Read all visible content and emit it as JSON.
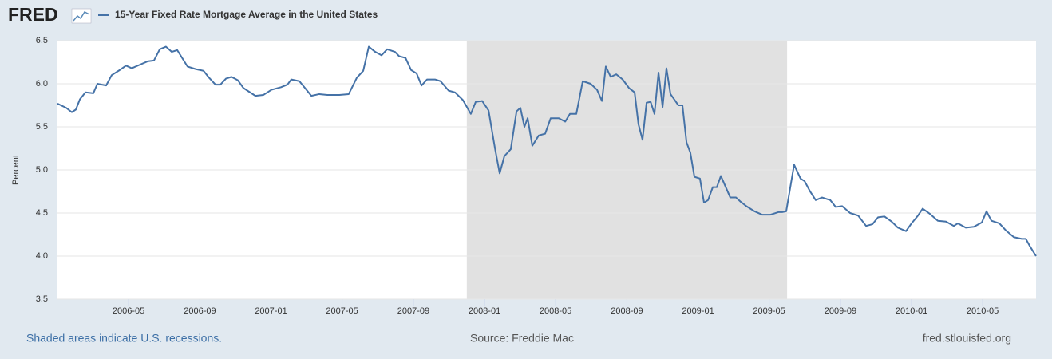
{
  "logo": "FRED",
  "chart_data": {
    "type": "line",
    "y_label": "Percent",
    "note": "Shaded areas indicate U.S. recessions.",
    "source": "Source: Freddie Mac",
    "site": "fred.stlouisfed.org",
    "grid": true,
    "recessions": [
      {
        "start": 2007.917,
        "end": 2009.417
      }
    ],
    "xlim": [
      2006.0,
      2010.583
    ],
    "xticks": [
      {
        "value": 2006.333,
        "label": "2006-05"
      },
      {
        "value": 2006.667,
        "label": "2006-09"
      },
      {
        "value": 2007.0,
        "label": "2007-01"
      },
      {
        "value": 2007.333,
        "label": "2007-05"
      },
      {
        "value": 2007.667,
        "label": "2007-09"
      },
      {
        "value": 2008.0,
        "label": "2008-01"
      },
      {
        "value": 2008.333,
        "label": "2008-05"
      },
      {
        "value": 2008.667,
        "label": "2008-09"
      },
      {
        "value": 2009.0,
        "label": "2009-01"
      },
      {
        "value": 2009.333,
        "label": "2009-05"
      },
      {
        "value": 2009.667,
        "label": "2009-09"
      },
      {
        "value": 2010.0,
        "label": "2010-01"
      },
      {
        "value": 2010.333,
        "label": "2010-05"
      }
    ],
    "ylim": [
      3.5,
      6.5
    ],
    "yticks": [
      3.5,
      {
        "value": 4,
        "label": "4.0"
      },
      4.5,
      {
        "value": 5,
        "label": "5.0"
      },
      5.5,
      {
        "value": 6,
        "label": "6.0"
      },
      6.5
    ],
    "x": [
      2006.0,
      2006.041,
      2006.067,
      2006.086,
      2006.105,
      2006.131,
      2006.168,
      2006.187,
      2006.228,
      2006.254,
      2006.292,
      2006.321,
      2006.348,
      2006.385,
      2006.422,
      2006.452,
      2006.479,
      2006.508,
      2006.535,
      2006.561,
      2006.609,
      2006.647,
      2006.684,
      2006.71,
      2006.74,
      2006.763,
      2006.789,
      2006.815,
      2006.845,
      2006.871,
      2006.927,
      2006.964,
      2007.002,
      2007.047,
      2007.077,
      2007.095,
      2007.133,
      2007.189,
      2007.226,
      2007.264,
      2007.32,
      2007.364,
      2007.402,
      2007.432,
      2007.458,
      2007.488,
      2007.518,
      2007.544,
      2007.581,
      2007.6,
      2007.63,
      2007.656,
      2007.682,
      2007.705,
      2007.731,
      2007.768,
      2007.794,
      2007.832,
      2007.862,
      2007.899,
      2007.936,
      2007.959,
      2007.989,
      2008.019,
      2008.049,
      2008.071,
      2008.093,
      2008.123,
      2008.15,
      2008.168,
      2008.187,
      2008.202,
      2008.224,
      2008.254,
      2008.284,
      2008.31,
      2008.348,
      2008.378,
      2008.4,
      2008.43,
      2008.46,
      2008.497,
      2008.527,
      2008.55,
      2008.568,
      2008.591,
      2008.617,
      2008.647,
      2008.677,
      2008.703,
      2008.721,
      2008.74,
      2008.759,
      2008.778,
      2008.796,
      2008.815,
      2008.834,
      2008.852,
      2008.871,
      2008.908,
      2008.927,
      2008.946,
      2008.964,
      2008.983,
      2009.009,
      2009.028,
      2009.047,
      2009.069,
      2009.088,
      2009.107,
      2009.151,
      2009.178,
      2009.2,
      2009.226,
      2009.264,
      2009.301,
      2009.338,
      2009.376,
      2009.394,
      2009.413,
      2009.45,
      2009.48,
      2009.499,
      2009.525,
      2009.551,
      2009.581,
      2009.619,
      2009.645,
      2009.675,
      2009.712,
      2009.75,
      2009.787,
      2009.817,
      2009.843,
      2009.873,
      2009.907,
      2009.936,
      2009.974,
      2010.0,
      2010.03,
      2010.052,
      2010.086,
      2010.123,
      2010.161,
      2010.198,
      2010.217,
      2010.254,
      2010.292,
      2010.329,
      2010.351,
      2010.374,
      2010.411,
      2010.441,
      2010.479,
      2010.516,
      2010.535,
      2010.553,
      2010.583
    ],
    "series": [
      {
        "name": "15-Year Fixed Rate Mortgage Average in the United States",
        "color": "#4572a7",
        "values": [
          5.77,
          5.72,
          5.67,
          5.7,
          5.82,
          5.9,
          5.89,
          6.0,
          5.98,
          6.1,
          6.16,
          6.21,
          6.18,
          6.22,
          6.26,
          6.27,
          6.4,
          6.43,
          6.37,
          6.39,
          6.2,
          6.17,
          6.15,
          6.07,
          5.99,
          5.99,
          6.06,
          6.08,
          6.04,
          5.95,
          5.86,
          5.87,
          5.93,
          5.96,
          5.99,
          6.05,
          6.03,
          5.86,
          5.88,
          5.87,
          5.87,
          5.88,
          6.07,
          6.15,
          6.43,
          6.37,
          6.33,
          6.4,
          6.37,
          6.32,
          6.3,
          6.16,
          6.12,
          5.98,
          6.05,
          6.05,
          6.03,
          5.92,
          5.9,
          5.81,
          5.65,
          5.79,
          5.8,
          5.69,
          5.25,
          4.96,
          5.16,
          5.24,
          5.68,
          5.72,
          5.5,
          5.6,
          5.28,
          5.4,
          5.42,
          5.6,
          5.6,
          5.56,
          5.65,
          5.65,
          6.03,
          6.0,
          5.93,
          5.8,
          6.2,
          6.08,
          6.11,
          6.05,
          5.95,
          5.9,
          5.53,
          5.35,
          5.78,
          5.79,
          5.65,
          6.13,
          5.73,
          6.18,
          5.88,
          5.75,
          5.75,
          5.32,
          5.2,
          4.92,
          4.9,
          4.62,
          4.65,
          4.8,
          4.8,
          4.93,
          4.68,
          4.68,
          4.63,
          4.58,
          4.52,
          4.48,
          4.48,
          4.51,
          4.51,
          4.52,
          5.06,
          4.9,
          4.87,
          4.75,
          4.65,
          4.68,
          4.65,
          4.57,
          4.58,
          4.5,
          4.47,
          4.35,
          4.37,
          4.45,
          4.46,
          4.4,
          4.33,
          4.29,
          4.38,
          4.47,
          4.55,
          4.49,
          4.41,
          4.4,
          4.35,
          4.38,
          4.33,
          4.34,
          4.39,
          4.52,
          4.41,
          4.38,
          4.3,
          4.22,
          4.2,
          4.2,
          4.12,
          4.0
        ]
      }
    ]
  }
}
